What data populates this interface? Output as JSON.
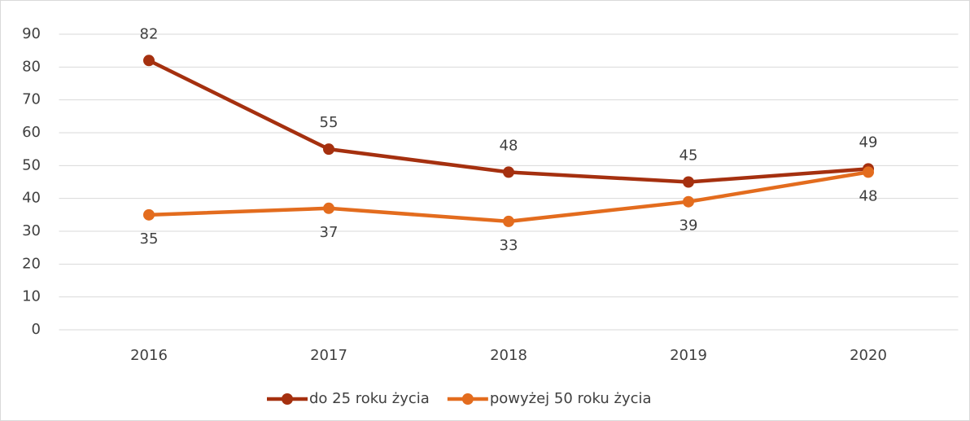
{
  "chart_data": {
    "type": "line",
    "categories": [
      "2016",
      "2017",
      "2018",
      "2019",
      "2020"
    ],
    "series": [
      {
        "name": "do 25 roku życia",
        "color": "#a5300f",
        "values": [
          82,
          55,
          48,
          45,
          49
        ]
      },
      {
        "name": "powyżej 50 roku życia",
        "color": "#e36c1e",
        "values": [
          35,
          37,
          33,
          39,
          48
        ]
      }
    ],
    "ylim": [
      0,
      90
    ],
    "yticks": [
      0,
      10,
      20,
      30,
      40,
      50,
      60,
      70,
      80,
      90
    ],
    "grid": true,
    "legend": "bottom"
  }
}
